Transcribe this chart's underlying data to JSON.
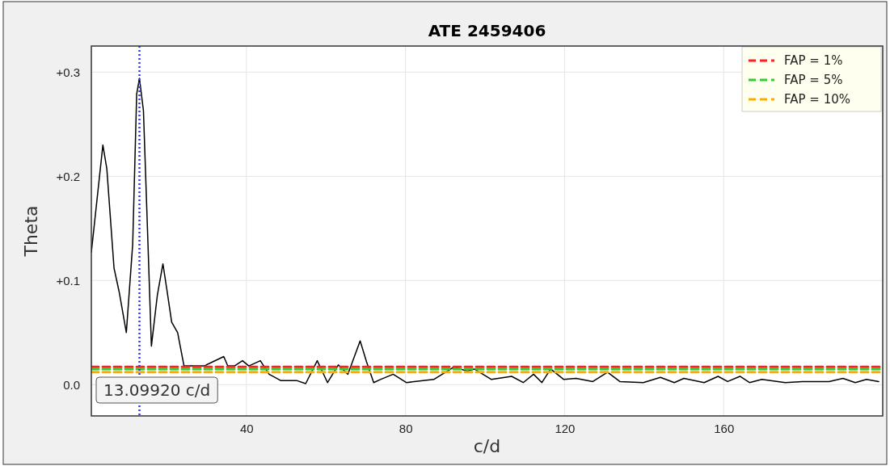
{
  "chart_data": {
    "type": "line",
    "title": "ATE 2459406",
    "xlabel": "c/d",
    "ylabel": "Theta",
    "xlim": [
      1,
      200
    ],
    "xticks": [
      40,
      80,
      120,
      160
    ],
    "ylim": [
      -0.03,
      0.325
    ],
    "yticks": [
      {
        "value": 0,
        "label": "0.0"
      },
      {
        "value": 0.1,
        "label": "+0.1"
      },
      {
        "value": 0.2,
        "label": "+0.2"
      },
      {
        "value": 0.3,
        "label": "+0.3"
      }
    ],
    "grid": true,
    "legend": "top right",
    "marker": "none",
    "line_style": "solid",
    "series": [
      {
        "color": "#000000",
        "x": [
          1.0,
          3.9,
          4.9,
          6.7,
          8.0,
          9.8,
          11.4,
          12.4,
          13.1,
          14.1,
          15.1,
          16.1,
          17.6,
          19.0,
          20.0,
          21.2,
          22.7,
          24.3,
          29.4,
          34.3,
          35.3,
          37,
          39,
          40.6,
          43.5,
          45.7,
          48.6,
          52.6,
          54.9,
          57.8,
          60.4,
          63.1,
          65.5,
          68.6,
          70.2,
          72,
          73.7,
          76.9,
          80.2,
          87.1,
          92.2,
          95.5,
          97.3,
          101.6,
          106.7,
          109.6,
          112.2,
          114.3,
          116.5,
          119.8,
          122.9,
          127.1,
          130.8,
          133.9,
          139.8,
          144.1,
          147.6,
          150,
          155.1,
          158.6,
          161,
          164.1,
          166.5,
          169.6,
          175.5,
          179.8,
          186.5,
          190,
          193.1,
          195.9,
          199
        ],
        "values": [
          0.127,
          0.23,
          0.207,
          0.112,
          0.089,
          0.05,
          0.135,
          0.279,
          0.294,
          0.263,
          0.151,
          0.037,
          0.086,
          0.116,
          0.091,
          0.06,
          0.05,
          0.018,
          0.018,
          0.027,
          0.018,
          0.018,
          0.023,
          0.018,
          0.023,
          0.01,
          0.004,
          0.004,
          0.001,
          0.023,
          0.002,
          0.019,
          0.01,
          0.042,
          0.022,
          0.002,
          0.005,
          0.01,
          0.002,
          0.005,
          0.017,
          0.013,
          0.015,
          0.005,
          0.008,
          0.002,
          0.01,
          0.002,
          0.015,
          0.005,
          0.006,
          0.003,
          0.012,
          0.003,
          0.002,
          0.007,
          0.002,
          0.006,
          0.002,
          0.008,
          0.003,
          0.008,
          0.002,
          0.005,
          0.002,
          0.003,
          0.003,
          0.006,
          0.002,
          0.005,
          0.003
        ]
      },
      {
        "name": "FAP = 1%",
        "color": "#ff2020",
        "line_style": "dashed",
        "x": [
          1,
          200
        ],
        "values": [
          0.017,
          0.017
        ]
      },
      {
        "name": "FAP = 5%",
        "color": "#33cc33",
        "line_style": "dashed",
        "x": [
          1,
          200
        ],
        "values": [
          0.015,
          0.015
        ]
      },
      {
        "name": "FAP = 10%",
        "color": "#ffaa00",
        "line_style": "dashed",
        "x": [
          1,
          200
        ],
        "values": [
          0.012,
          0.012
        ]
      }
    ],
    "ref_lines": [
      {
        "axis": "x",
        "value": 13.0992,
        "label": "13.09920 c/d",
        "color": "#3333ff",
        "line_style": "dotted"
      }
    ]
  }
}
